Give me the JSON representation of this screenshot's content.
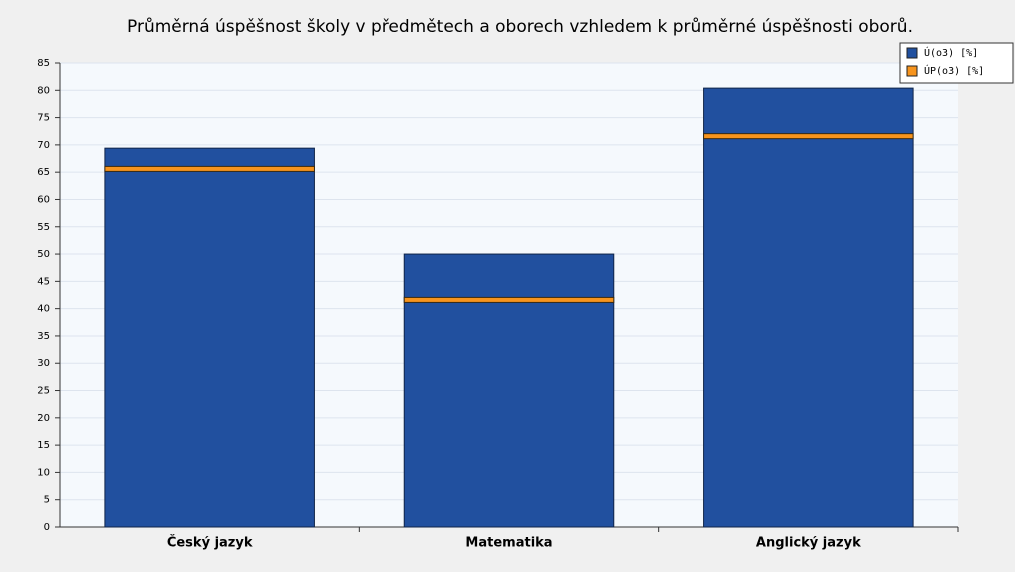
{
  "chart_data": {
    "type": "bar",
    "title": "Průměrná úspěšnost školy v předmětech a oborech vzhledem k průměrné úspěšnosti oborů.",
    "categories": [
      "Český jazyk",
      "Matematika",
      "Anglický jazyk"
    ],
    "series": [
      {
        "name": "Ú(o3) [%]",
        "color": "#21509f",
        "values": [
          69.4,
          50.0,
          80.4
        ]
      },
      {
        "name": "ÚP(o3) [%]",
        "color": "#f7941d",
        "values": [
          65.6,
          41.6,
          71.6
        ]
      }
    ],
    "ylim": [
      0,
      85
    ],
    "yticks": [
      0,
      5,
      10,
      15,
      20,
      25,
      30,
      35,
      40,
      45,
      50,
      55,
      60,
      65,
      70,
      75,
      80,
      85
    ],
    "grid": true,
    "legend": "top-right"
  }
}
